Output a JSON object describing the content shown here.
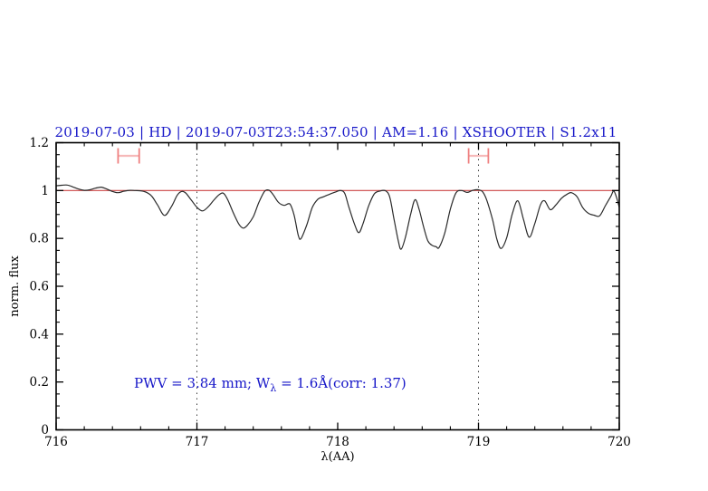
{
  "colors": {
    "background": "#ffffff",
    "axis": "#000000",
    "curve": "#2b2b2b",
    "title_blue": "#1616c8",
    "annotation_blue": "#1616c8",
    "reference_red": "#cc4444",
    "marker_red": "#ef8080",
    "dotted_line": "#3a3a3a"
  },
  "chart_data": {
    "type": "line",
    "title": "2019-07-03 | HD | 2019-07-03T23:54:37.050 | AM=1.16 | XSHOOTER | S1.2x11",
    "xlabel": "λ(AA)",
    "ylabel": "norm. flux",
    "xlim": [
      716,
      720
    ],
    "ylim": [
      0,
      1.2
    ],
    "x_major_ticks": [
      716,
      717,
      718,
      719,
      720
    ],
    "x_major_tick_labels": [
      "716",
      "717",
      "718",
      "719",
      "720"
    ],
    "x_minor_step": 0.2,
    "y_major_ticks": [
      0,
      0.2,
      0.4,
      0.6,
      0.8,
      1,
      1.2
    ],
    "y_major_tick_labels": [
      "0",
      "0.2",
      "0.4",
      "0.6",
      "0.8",
      "1",
      "1.2"
    ],
    "y_minor_step": 0.05,
    "grid": "off",
    "legend": "none",
    "dotted_vlines": [
      717,
      719
    ],
    "reference_hline_y": 1.0,
    "annotation": {
      "prefix": "PWV = 3.84 mm; W",
      "subscript": "λ",
      "suffix": " = 1.6Å(corr: 1.37)"
    },
    "pwv_interval_markers": [
      {
        "x_center": 716.515,
        "x_half_width": 0.075,
        "y": 1.145
      },
      {
        "x_center": 719.0,
        "x_half_width": 0.07,
        "y": 1.145
      }
    ],
    "series": [
      {
        "name": "normalized telluric spectrum",
        "points": [
          [
            716.0,
            1.02
          ],
          [
            716.04,
            1.022
          ],
          [
            716.08,
            1.023
          ],
          [
            716.12,
            1.015
          ],
          [
            716.16,
            1.006
          ],
          [
            716.2,
            1.001
          ],
          [
            716.24,
            1.003
          ],
          [
            716.28,
            1.01
          ],
          [
            716.32,
            1.014
          ],
          [
            716.36,
            1.006
          ],
          [
            716.4,
            0.996
          ],
          [
            716.44,
            0.991
          ],
          [
            716.48,
            0.997
          ],
          [
            716.52,
            1.001
          ],
          [
            716.56,
            1.0
          ],
          [
            716.6,
            0.999
          ],
          [
            716.64,
            0.993
          ],
          [
            716.68,
            0.976
          ],
          [
            716.72,
            0.94
          ],
          [
            716.77,
            0.896
          ],
          [
            716.82,
            0.934
          ],
          [
            716.86,
            0.98
          ],
          [
            716.89,
            0.996
          ],
          [
            716.92,
            0.99
          ],
          [
            716.96,
            0.96
          ],
          [
            717.0,
            0.93
          ],
          [
            717.04,
            0.915
          ],
          [
            717.08,
            0.932
          ],
          [
            717.12,
            0.96
          ],
          [
            717.16,
            0.984
          ],
          [
            717.19,
            0.988
          ],
          [
            717.22,
            0.96
          ],
          [
            717.26,
            0.905
          ],
          [
            717.3,
            0.858
          ],
          [
            717.33,
            0.843
          ],
          [
            717.36,
            0.856
          ],
          [
            717.4,
            0.89
          ],
          [
            717.44,
            0.95
          ],
          [
            717.48,
            0.996
          ],
          [
            717.51,
            1.002
          ],
          [
            717.54,
            0.984
          ],
          [
            717.58,
            0.95
          ],
          [
            717.62,
            0.938
          ],
          [
            717.66,
            0.944
          ],
          [
            717.69,
            0.898
          ],
          [
            717.72,
            0.812
          ],
          [
            717.74,
            0.8
          ],
          [
            717.78,
            0.856
          ],
          [
            717.82,
            0.93
          ],
          [
            717.86,
            0.964
          ],
          [
            717.9,
            0.974
          ],
          [
            717.94,
            0.984
          ],
          [
            717.98,
            0.993
          ],
          [
            718.02,
            1.0
          ],
          [
            718.05,
            0.988
          ],
          [
            718.08,
            0.93
          ],
          [
            718.12,
            0.858
          ],
          [
            718.15,
            0.824
          ],
          [
            718.18,
            0.862
          ],
          [
            718.22,
            0.936
          ],
          [
            718.26,
            0.986
          ],
          [
            718.3,
            0.998
          ],
          [
            718.34,
            0.999
          ],
          [
            718.37,
            0.972
          ],
          [
            718.4,
            0.88
          ],
          [
            718.43,
            0.79
          ],
          [
            718.45,
            0.755
          ],
          [
            718.48,
            0.802
          ],
          [
            718.52,
            0.906
          ],
          [
            718.55,
            0.962
          ],
          [
            718.58,
            0.918
          ],
          [
            718.61,
            0.848
          ],
          [
            718.64,
            0.79
          ],
          [
            718.67,
            0.771
          ],
          [
            718.7,
            0.765
          ],
          [
            718.72,
            0.762
          ],
          [
            718.76,
            0.822
          ],
          [
            718.8,
            0.922
          ],
          [
            718.84,
            0.99
          ],
          [
            718.88,
            1.0
          ],
          [
            718.92,
            0.992
          ],
          [
            718.96,
            1.001
          ],
          [
            719.0,
            1.003
          ],
          [
            719.03,
            0.994
          ],
          [
            719.06,
            0.958
          ],
          [
            719.1,
            0.878
          ],
          [
            719.13,
            0.798
          ],
          [
            719.16,
            0.758
          ],
          [
            719.2,
            0.802
          ],
          [
            719.24,
            0.902
          ],
          [
            719.28,
            0.957
          ],
          [
            719.32,
            0.878
          ],
          [
            719.36,
            0.805
          ],
          [
            719.4,
            0.862
          ],
          [
            719.44,
            0.94
          ],
          [
            719.47,
            0.957
          ],
          [
            719.51,
            0.92
          ],
          [
            719.55,
            0.94
          ],
          [
            719.59,
            0.968
          ],
          [
            719.63,
            0.985
          ],
          [
            719.66,
            0.991
          ],
          [
            719.7,
            0.974
          ],
          [
            719.74,
            0.929
          ],
          [
            719.78,
            0.905
          ],
          [
            719.82,
            0.897
          ],
          [
            719.86,
            0.894
          ],
          [
            719.9,
            0.935
          ],
          [
            719.94,
            0.976
          ],
          [
            719.96,
            0.998
          ],
          [
            719.98,
            0.972
          ],
          [
            720.0,
            0.93
          ]
        ]
      }
    ]
  }
}
